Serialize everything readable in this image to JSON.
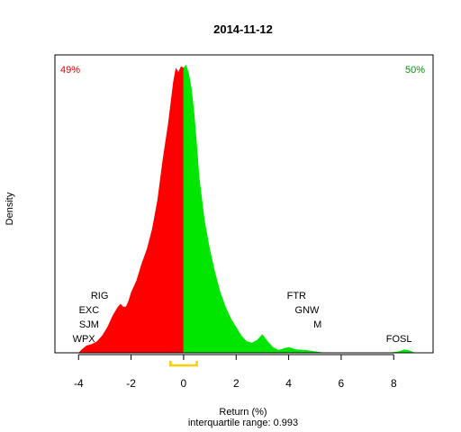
{
  "chart_data": {
    "type": "area",
    "title": "2014-11-12",
    "xlabel": "Return (%)",
    "ylabel": "Density",
    "subtitle": "interquartile range: 0.993",
    "xlim": [
      -4.9,
      9.5
    ],
    "ylim": [
      0,
      1.0
    ],
    "x_ticks": [
      -4,
      -2,
      0,
      2,
      4,
      6,
      8
    ],
    "tick_labels": [
      "-4",
      "-2",
      "0",
      "2",
      "4",
      "6",
      "8"
    ],
    "split_at": 0,
    "negative_share": "49%",
    "positive_share": "50%",
    "negative_color": "#ff0000",
    "positive_color": "#00e600",
    "negative_text_color": "#e60000",
    "positive_text_color": "#009900",
    "iqr_color": "#ffcc00",
    "iqr": [
      -0.5,
      0.5
    ],
    "density": {
      "x": [
        -4.0,
        -3.9,
        -3.7,
        -3.5,
        -3.3,
        -3.1,
        -2.9,
        -2.7,
        -2.5,
        -2.4,
        -2.3,
        -2.2,
        -2.1,
        -2.0,
        -1.9,
        -1.8,
        -1.6,
        -1.4,
        -1.2,
        -1.0,
        -0.8,
        -0.6,
        -0.4,
        -0.3,
        -0.2,
        -0.1,
        0.0,
        0.1,
        0.2,
        0.3,
        0.4,
        0.5,
        0.6,
        0.8,
        1.0,
        1.2,
        1.4,
        1.6,
        1.8,
        2.0,
        2.2,
        2.4,
        2.6,
        2.8,
        3.0,
        3.2,
        3.4,
        3.6,
        3.8,
        4.0,
        4.3,
        4.6,
        5.0,
        5.4,
        5.8,
        6.2,
        6.6,
        7.0,
        7.4,
        7.8,
        8.2,
        8.4,
        8.6,
        8.8
      ],
      "y": [
        0.0,
        0.01,
        0.025,
        0.03,
        0.04,
        0.06,
        0.09,
        0.13,
        0.16,
        0.17,
        0.16,
        0.16,
        0.18,
        0.21,
        0.23,
        0.25,
        0.31,
        0.36,
        0.43,
        0.53,
        0.67,
        0.79,
        0.94,
        0.99,
        0.975,
        0.995,
        0.99,
        1.0,
        0.97,
        0.92,
        0.84,
        0.73,
        0.61,
        0.46,
        0.36,
        0.28,
        0.21,
        0.16,
        0.12,
        0.09,
        0.06,
        0.04,
        0.035,
        0.045,
        0.065,
        0.04,
        0.02,
        0.01,
        0.015,
        0.02,
        0.012,
        0.01,
        0.005,
        0.0,
        0.0,
        0.0,
        0.0,
        0.0,
        0.0,
        0.0,
        0.005,
        0.012,
        0.008,
        0.0
      ]
    },
    "labels": [
      {
        "text": "RIG",
        "x": -3.2,
        "y": 0.2
      },
      {
        "text": "EXC",
        "x": -3.6,
        "y": 0.15
      },
      {
        "text": "SJM",
        "x": -3.6,
        "y": 0.1
      },
      {
        "text": "WPX",
        "x": -3.8,
        "y": 0.05
      },
      {
        "text": "FTR",
        "x": 4.3,
        "y": 0.2
      },
      {
        "text": "GNW",
        "x": 4.7,
        "y": 0.15
      },
      {
        "text": "M",
        "x": 5.1,
        "y": 0.1
      },
      {
        "text": "FOSL",
        "x": 8.2,
        "y": 0.05
      }
    ]
  }
}
